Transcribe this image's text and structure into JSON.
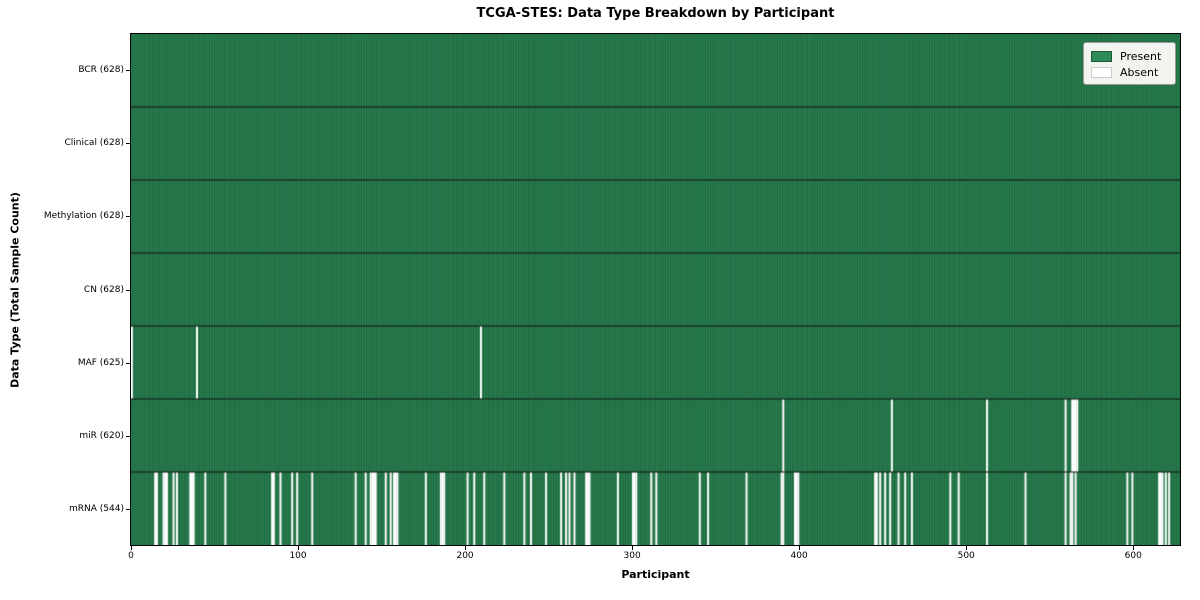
{
  "title": "TCGA-STES: Data Type Breakdown by Participant",
  "legend": {
    "items": [
      {
        "label": "Present",
        "color": "#2e8b57"
      },
      {
        "label": "Absent",
        "color": "#ffffff"
      }
    ]
  },
  "chart_data": {
    "type": "heatmap",
    "title": "TCGA-STES: Data Type Breakdown by Participant",
    "xlabel": "Participant",
    "ylabel": "Data Type (Total Sample Count)",
    "n_participants": 628,
    "x_ticks": [
      0,
      100,
      200,
      300,
      400,
      500,
      600
    ],
    "xlim": [
      0,
      628
    ],
    "grid": false,
    "legend_position": "upper right",
    "colors": {
      "present": "#2e8b57",
      "absent": "#ffffff",
      "bar_edge": "rgba(0,28,14,0.55)",
      "row_divider": "#111111"
    },
    "rows": [
      {
        "label": "BCR (628)",
        "name": "BCR",
        "present_count": 628,
        "absent_participants": []
      },
      {
        "label": "Clinical (628)",
        "name": "Clinical",
        "present_count": 628,
        "absent_participants": []
      },
      {
        "label": "Methylation (628)",
        "name": "Methylation",
        "present_count": 628,
        "absent_participants": []
      },
      {
        "label": "CN (628)",
        "name": "CN",
        "present_count": 628,
        "absent_participants": []
      },
      {
        "label": "MAF (625)",
        "name": "MAF",
        "present_count": 625,
        "absent_participants": [
          0,
          39,
          209
        ]
      },
      {
        "label": "miR (620)",
        "name": "miR",
        "present_count": 620,
        "absent_participants": [
          390,
          455,
          512,
          559,
          563,
          564,
          565,
          566
        ]
      },
      {
        "label": "mRNA (544)",
        "name": "mRNA",
        "present_count": 544,
        "absent_participants": [
          14,
          15,
          19,
          20,
          21,
          25,
          27,
          35,
          36,
          37,
          44,
          56,
          84,
          85,
          89,
          96,
          99,
          108,
          134,
          140,
          143,
          144,
          145,
          146,
          152,
          155,
          157,
          158,
          159,
          176,
          185,
          186,
          187,
          201,
          205,
          211,
          223,
          235,
          239,
          248,
          257,
          260,
          262,
          265,
          272,
          273,
          274,
          291,
          300,
          301,
          302,
          311,
          314,
          340,
          345,
          368,
          389,
          390,
          397,
          398,
          399,
          445,
          446,
          448,
          451,
          454,
          459,
          463,
          467,
          490,
          495,
          512,
          535,
          559,
          562,
          563,
          565,
          596,
          599,
          615,
          616,
          617,
          619,
          621
        ]
      }
    ]
  }
}
